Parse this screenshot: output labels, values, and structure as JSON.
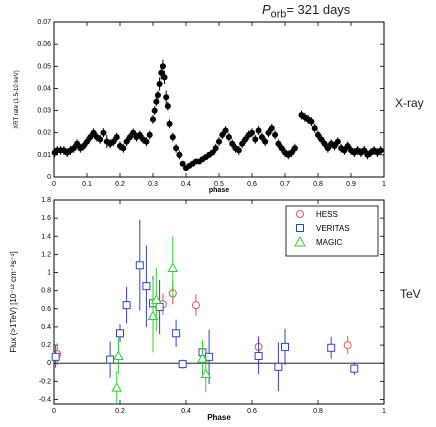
{
  "header": {
    "period_symbol": "P",
    "period_subscript": "orb",
    "period_text": "= 321 days"
  },
  "labels": {
    "xray": "X-ray",
    "tev": "TeV"
  },
  "chart_data": [
    {
      "type": "scatter",
      "xlabel": "phase",
      "ylabel": "XRT rate (1.5-10 keV)",
      "xlim": [
        0,
        1
      ],
      "ylim": [
        0,
        0.07
      ],
      "xticks": [
        0,
        0.1,
        0.2,
        0.3,
        0.4,
        0.5,
        0.6,
        0.7,
        0.8,
        0.9,
        1
      ],
      "yticks": [
        0,
        0.01,
        0.02,
        0.03,
        0.04,
        0.05,
        0.06,
        0.07
      ],
      "series": [
        {
          "marker": "filled-circle",
          "color": "#000000",
          "points": [
            {
              "x": 0.002,
              "y": 0.011,
              "e": 0.002
            },
            {
              "x": 0.01,
              "y": 0.012,
              "e": 0.002
            },
            {
              "x": 0.02,
              "y": 0.012,
              "e": 0.002
            },
            {
              "x": 0.03,
              "y": 0.012,
              "e": 0.002
            },
            {
              "x": 0.04,
              "y": 0.011,
              "e": 0.002
            },
            {
              "x": 0.05,
              "y": 0.012,
              "e": 0.002
            },
            {
              "x": 0.06,
              "y": 0.013,
              "e": 0.002
            },
            {
              "x": 0.07,
              "y": 0.015,
              "e": 0.002
            },
            {
              "x": 0.08,
              "y": 0.013,
              "e": 0.002
            },
            {
              "x": 0.09,
              "y": 0.014,
              "e": 0.002
            },
            {
              "x": 0.1,
              "y": 0.016,
              "e": 0.002
            },
            {
              "x": 0.11,
              "y": 0.018,
              "e": 0.002
            },
            {
              "x": 0.12,
              "y": 0.02,
              "e": 0.002
            },
            {
              "x": 0.13,
              "y": 0.018,
              "e": 0.002
            },
            {
              "x": 0.14,
              "y": 0.017,
              "e": 0.002
            },
            {
              "x": 0.15,
              "y": 0.02,
              "e": 0.002
            },
            {
              "x": 0.16,
              "y": 0.016,
              "e": 0.003
            },
            {
              "x": 0.17,
              "y": 0.015,
              "e": 0.002
            },
            {
              "x": 0.18,
              "y": 0.016,
              "e": 0.002
            },
            {
              "x": 0.19,
              "y": 0.018,
              "e": 0.002
            },
            {
              "x": 0.2,
              "y": 0.014,
              "e": 0.002
            },
            {
              "x": 0.21,
              "y": 0.013,
              "e": 0.002
            },
            {
              "x": 0.22,
              "y": 0.016,
              "e": 0.002
            },
            {
              "x": 0.23,
              "y": 0.018,
              "e": 0.002
            },
            {
              "x": 0.24,
              "y": 0.02,
              "e": 0.002
            },
            {
              "x": 0.25,
              "y": 0.018,
              "e": 0.002
            },
            {
              "x": 0.26,
              "y": 0.019,
              "e": 0.002
            },
            {
              "x": 0.27,
              "y": 0.017,
              "e": 0.002
            },
            {
              "x": 0.28,
              "y": 0.016,
              "e": 0.002
            },
            {
              "x": 0.29,
              "y": 0.019,
              "e": 0.002
            },
            {
              "x": 0.3,
              "y": 0.026,
              "e": 0.002
            },
            {
              "x": 0.305,
              "y": 0.03,
              "e": 0.002
            },
            {
              "x": 0.31,
              "y": 0.034,
              "e": 0.002
            },
            {
              "x": 0.315,
              "y": 0.037,
              "e": 0.002
            },
            {
              "x": 0.32,
              "y": 0.042,
              "e": 0.003
            },
            {
              "x": 0.325,
              "y": 0.047,
              "e": 0.003
            },
            {
              "x": 0.33,
              "y": 0.05,
              "e": 0.003
            },
            {
              "x": 0.335,
              "y": 0.045,
              "e": 0.003
            },
            {
              "x": 0.34,
              "y": 0.036,
              "e": 0.003
            },
            {
              "x": 0.345,
              "y": 0.032,
              "e": 0.002
            },
            {
              "x": 0.35,
              "y": 0.024,
              "e": 0.002
            },
            {
              "x": 0.36,
              "y": 0.018,
              "e": 0.002
            },
            {
              "x": 0.37,
              "y": 0.013,
              "e": 0.002
            },
            {
              "x": 0.38,
              "y": 0.01,
              "e": 0.002
            },
            {
              "x": 0.39,
              "y": 0.006,
              "e": 0.001
            },
            {
              "x": 0.4,
              "y": 0.004,
              "e": 0.001
            },
            {
              "x": 0.41,
              "y": 0.005,
              "e": 0.001
            },
            {
              "x": 0.42,
              "y": 0.006,
              "e": 0.001
            },
            {
              "x": 0.43,
              "y": 0.007,
              "e": 0.001
            },
            {
              "x": 0.44,
              "y": 0.007,
              "e": 0.001
            },
            {
              "x": 0.45,
              "y": 0.008,
              "e": 0.001
            },
            {
              "x": 0.46,
              "y": 0.009,
              "e": 0.001
            },
            {
              "x": 0.47,
              "y": 0.01,
              "e": 0.001
            },
            {
              "x": 0.48,
              "y": 0.011,
              "e": 0.001
            },
            {
              "x": 0.49,
              "y": 0.013,
              "e": 0.002
            },
            {
              "x": 0.5,
              "y": 0.016,
              "e": 0.002
            },
            {
              "x": 0.51,
              "y": 0.019,
              "e": 0.002
            },
            {
              "x": 0.52,
              "y": 0.021,
              "e": 0.002
            },
            {
              "x": 0.53,
              "y": 0.018,
              "e": 0.002
            },
            {
              "x": 0.54,
              "y": 0.015,
              "e": 0.002
            },
            {
              "x": 0.55,
              "y": 0.013,
              "e": 0.002
            },
            {
              "x": 0.56,
              "y": 0.012,
              "e": 0.002
            },
            {
              "x": 0.57,
              "y": 0.015,
              "e": 0.002
            },
            {
              "x": 0.58,
              "y": 0.017,
              "e": 0.002
            },
            {
              "x": 0.59,
              "y": 0.019,
              "e": 0.002
            },
            {
              "x": 0.6,
              "y": 0.02,
              "e": 0.002
            },
            {
              "x": 0.61,
              "y": 0.017,
              "e": 0.002
            },
            {
              "x": 0.62,
              "y": 0.021,
              "e": 0.002
            },
            {
              "x": 0.63,
              "y": 0.018,
              "e": 0.002
            },
            {
              "x": 0.64,
              "y": 0.016,
              "e": 0.002
            },
            {
              "x": 0.65,
              "y": 0.02,
              "e": 0.002
            },
            {
              "x": 0.66,
              "y": 0.022,
              "e": 0.002
            },
            {
              "x": 0.67,
              "y": 0.019,
              "e": 0.002
            },
            {
              "x": 0.68,
              "y": 0.015,
              "e": 0.002
            },
            {
              "x": 0.69,
              "y": 0.013,
              "e": 0.002
            },
            {
              "x": 0.7,
              "y": 0.011,
              "e": 0.002
            },
            {
              "x": 0.71,
              "y": 0.01,
              "e": 0.002
            },
            {
              "x": 0.72,
              "y": 0.011,
              "e": 0.002
            },
            {
              "x": 0.73,
              "y": 0.013,
              "e": 0.002
            },
            {
              "x": 0.75,
              "y": 0.028,
              "e": 0.002
            },
            {
              "x": 0.76,
              "y": 0.027,
              "e": 0.002
            },
            {
              "x": 0.77,
              "y": 0.026,
              "e": 0.002
            },
            {
              "x": 0.78,
              "y": 0.025,
              "e": 0.002
            },
            {
              "x": 0.79,
              "y": 0.022,
              "e": 0.002
            },
            {
              "x": 0.8,
              "y": 0.019,
              "e": 0.002
            },
            {
              "x": 0.81,
              "y": 0.017,
              "e": 0.002
            },
            {
              "x": 0.82,
              "y": 0.015,
              "e": 0.002
            },
            {
              "x": 0.83,
              "y": 0.013,
              "e": 0.002
            },
            {
              "x": 0.84,
              "y": 0.015,
              "e": 0.002
            },
            {
              "x": 0.85,
              "y": 0.014,
              "e": 0.002
            },
            {
              "x": 0.86,
              "y": 0.016,
              "e": 0.002
            },
            {
              "x": 0.87,
              "y": 0.013,
              "e": 0.002
            },
            {
              "x": 0.88,
              "y": 0.012,
              "e": 0.002
            },
            {
              "x": 0.89,
              "y": 0.014,
              "e": 0.002
            },
            {
              "x": 0.9,
              "y": 0.012,
              "e": 0.002
            },
            {
              "x": 0.91,
              "y": 0.011,
              "e": 0.002
            },
            {
              "x": 0.92,
              "y": 0.012,
              "e": 0.002
            },
            {
              "x": 0.93,
              "y": 0.011,
              "e": 0.002
            },
            {
              "x": 0.94,
              "y": 0.012,
              "e": 0.002
            },
            {
              "x": 0.95,
              "y": 0.01,
              "e": 0.002
            },
            {
              "x": 0.96,
              "y": 0.011,
              "e": 0.002
            },
            {
              "x": 0.97,
              "y": 0.012,
              "e": 0.002
            },
            {
              "x": 0.98,
              "y": 0.011,
              "e": 0.002
            },
            {
              "x": 0.99,
              "y": 0.012,
              "e": 0.002
            }
          ]
        }
      ]
    },
    {
      "type": "scatter",
      "xlabel": "Phase",
      "ylabel": "Flux (>1TeV) [10⁻¹² cm⁻²s⁻¹]",
      "xlim": [
        0,
        1
      ],
      "ylim": [
        -0.45,
        1.8
      ],
      "xticks": [
        0,
        0.2,
        0.4,
        0.6,
        0.8,
        1
      ],
      "yticks": [
        -0.4,
        -0.2,
        0,
        0.2,
        0.4,
        0.6,
        0.8,
        1,
        1.2,
        1.4,
        1.6,
        1.8
      ],
      "legend": "top-right",
      "baseline": 0,
      "series": [
        {
          "name": "HESS",
          "marker": "circle",
          "color": "#e05555",
          "points": [
            {
              "x": 0.01,
              "y": 0.1,
              "e": 0.12
            },
            {
              "x": 0.33,
              "y": 0.65,
              "e": 0.12
            },
            {
              "x": 0.36,
              "y": 0.77,
              "e": 0.12
            },
            {
              "x": 0.43,
              "y": 0.64,
              "e": 0.12
            },
            {
              "x": 0.62,
              "y": 0.18,
              "e": 0.12
            },
            {
              "x": 0.89,
              "y": 0.2,
              "e": 0.1
            }
          ]
        },
        {
          "name": "VERITAS",
          "marker": "square",
          "color": "#3344bb",
          "points": [
            {
              "x": 0.005,
              "y": 0.07,
              "e": 0.12
            },
            {
              "x": 0.17,
              "y": 0.04,
              "e": 0.2
            },
            {
              "x": 0.2,
              "y": 0.33,
              "e": 0.1
            },
            {
              "x": 0.22,
              "y": 0.64,
              "e": 0.2
            },
            {
              "x": 0.26,
              "y": 1.08,
              "e": 0.5
            },
            {
              "x": 0.28,
              "y": 0.85,
              "e": 0.45
            },
            {
              "x": 0.3,
              "y": 0.66,
              "e": 0.3
            },
            {
              "x": 0.32,
              "y": 0.62,
              "e": 0.3
            },
            {
              "x": 0.37,
              "y": 0.33,
              "e": 0.15
            },
            {
              "x": 0.39,
              "y": -0.01,
              "e": 0.05
            },
            {
              "x": 0.45,
              "y": 0.12,
              "e": 0.1
            },
            {
              "x": 0.47,
              "y": 0.07,
              "e": 0.3
            },
            {
              "x": 0.62,
              "y": 0.08,
              "e": 0.2
            },
            {
              "x": 0.68,
              "y": -0.04,
              "e": 0.27
            },
            {
              "x": 0.7,
              "y": 0.18,
              "e": 0.2
            },
            {
              "x": 0.84,
              "y": 0.17,
              "e": 0.12
            },
            {
              "x": 0.91,
              "y": -0.06,
              "e": 0.07
            }
          ]
        },
        {
          "name": "MAGIC",
          "marker": "triangle",
          "color": "#33cc33",
          "points": [
            {
              "x": 0.19,
              "y": -0.27,
              "e": 0.18
            },
            {
              "x": 0.195,
              "y": 0.08,
              "e": 0.2
            },
            {
              "x": 0.3,
              "y": 0.52,
              "e": 0.4
            },
            {
              "x": 0.31,
              "y": 0.7,
              "e": 0.35
            },
            {
              "x": 0.36,
              "y": 1.05,
              "e": 0.35
            },
            {
              "x": 0.45,
              "y": 0.05,
              "e": 0.2
            },
            {
              "x": 0.46,
              "y": -0.12,
              "e": 0.2
            }
          ]
        }
      ]
    }
  ]
}
